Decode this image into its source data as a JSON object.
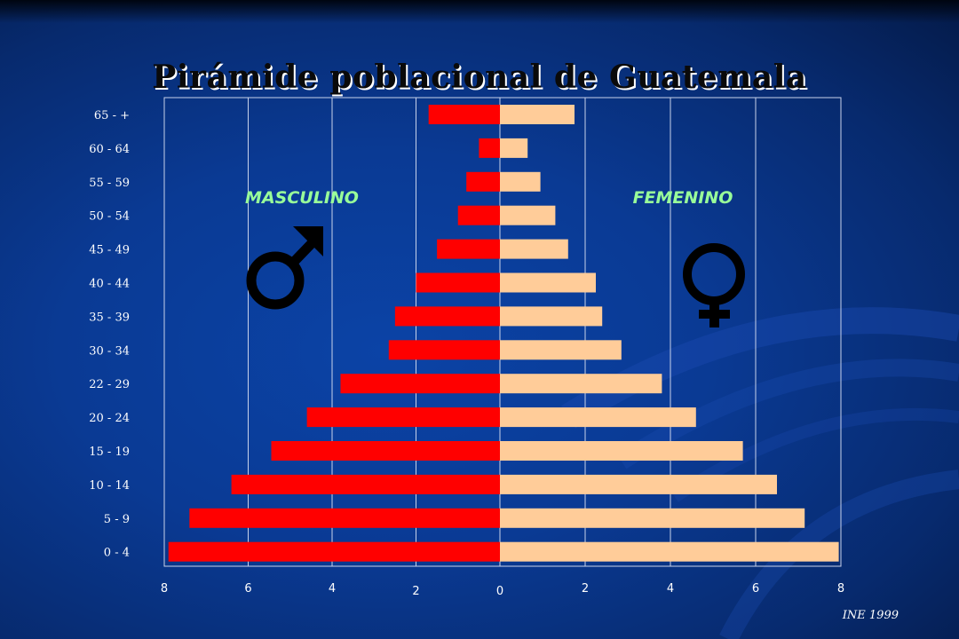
{
  "title": "Pirámide poblacional de Guatemala",
  "source": "INE 1999",
  "chart_data": {
    "type": "bar",
    "orientation": "horizontal-pyramid",
    "title": "Pirámide poblacional de Guatemala",
    "categories": [
      "65  - +",
      "60 - 64",
      "55 - 59",
      "50 - 54",
      "45 - 49",
      "40 - 44",
      "35 - 39",
      "30 - 34",
      "22 - 29",
      "20 - 24",
      "15 - 19",
      "10 - 14",
      "5 - 9",
      "0 - 4"
    ],
    "series": [
      {
        "name": "MASCULINO",
        "values": [
          1.7,
          0.5,
          0.8,
          1.0,
          1.5,
          2.0,
          2.5,
          2.65,
          3.8,
          4.6,
          5.45,
          6.4,
          7.4,
          7.9
        ],
        "color": "#ff0000"
      },
      {
        "name": "FEMENINO",
        "values": [
          1.75,
          0.65,
          0.95,
          1.3,
          1.6,
          2.25,
          2.4,
          2.85,
          3.8,
          4.6,
          5.7,
          6.5,
          7.15,
          7.95
        ],
        "color": "#ffcc99"
      }
    ],
    "xlim_left": [
      8,
      0
    ],
    "xlim_right": [
      0,
      8
    ],
    "left_ticks": [
      "8",
      "6",
      "4",
      "2",
      "0"
    ],
    "right_ticks": [
      "2",
      "4",
      "6",
      "8"
    ],
    "grid": true,
    "legend": "in-plot labels"
  },
  "labels": {
    "male": "MASCULINO",
    "female": "FEMENINO"
  },
  "symbols": {
    "male": "male-symbol-icon",
    "female": "female-symbol-icon"
  }
}
